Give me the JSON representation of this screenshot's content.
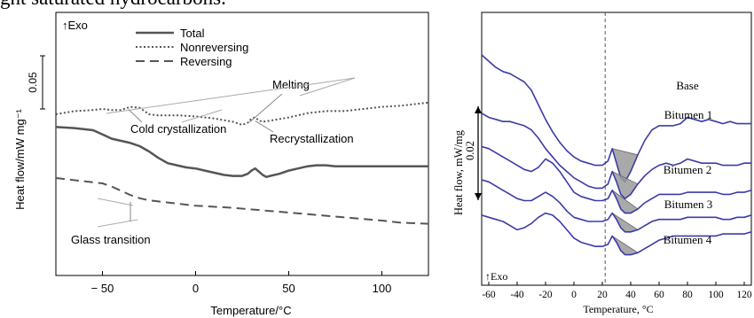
{
  "header_fragment": "ght saturated hydrocarbons.",
  "chart_data": [
    {
      "type": "line",
      "title": "",
      "xlabel": "Temperature/°C",
      "ylabel": "Heat flow/mW mg⁻¹",
      "exo_label": "↑Exo",
      "xlim": [
        -75,
        125
      ],
      "xticks": [
        -50,
        0,
        50,
        100
      ],
      "xtick_labels": [
        "− 50",
        "0",
        "50",
        "100"
      ],
      "scale_bar_label": "0.05",
      "scale_bar_value": 0.05,
      "legend_position": "top-left",
      "series": [
        {
          "name": "Total",
          "style": "solid",
          "color": "#555555",
          "x": [
            -75,
            -65,
            -55,
            -50,
            -45,
            -40,
            -35,
            -30,
            -25,
            -20,
            -15,
            -10,
            -5,
            0,
            5,
            10,
            15,
            20,
            25,
            28,
            30,
            32,
            34,
            36,
            38,
            40,
            45,
            50,
            55,
            60,
            65,
            70,
            75,
            80,
            90,
            100,
            110,
            125
          ],
          "y": [
            0.048,
            0.047,
            0.045,
            0.041,
            0.037,
            0.035,
            0.033,
            0.03,
            0.025,
            0.019,
            0.014,
            0.012,
            0.01,
            0.009,
            0.007,
            0.005,
            0.003,
            0.002,
            0.002,
            0.004,
            0.007,
            0.009,
            0.006,
            0.003,
            0.001,
            0.002,
            0.004,
            0.007,
            0.009,
            0.011,
            0.012,
            0.012,
            0.011,
            0.011,
            0.011,
            0.011,
            0.011,
            0.011
          ]
        },
        {
          "name": "Nonreversing",
          "style": "dotted",
          "color": "#555555",
          "x": [
            -75,
            -65,
            -55,
            -50,
            -45,
            -40,
            -35,
            -30,
            -25,
            -20,
            -10,
            0,
            10,
            20,
            25,
            28,
            30,
            32,
            34,
            36,
            40,
            50,
            60,
            70,
            80,
            90,
            100,
            110,
            120,
            125
          ],
          "y": [
            0.06,
            0.063,
            0.064,
            0.065,
            0.064,
            0.064,
            0.067,
            0.066,
            0.06,
            0.059,
            0.059,
            0.058,
            0.056,
            0.053,
            0.05,
            0.052,
            0.056,
            0.057,
            0.054,
            0.053,
            0.054,
            0.057,
            0.061,
            0.063,
            0.063,
            0.065,
            0.067,
            0.068,
            0.07,
            0.071
          ]
        },
        {
          "name": "Reversing",
          "style": "dashed",
          "color": "#555555",
          "x": [
            -75,
            -60,
            -50,
            -45,
            -40,
            -35,
            -30,
            -25,
            -20,
            -10,
            0,
            20,
            40,
            60,
            80,
            100,
            110,
            125
          ],
          "y": [
            0.0,
            -0.003,
            -0.005,
            -0.008,
            -0.012,
            -0.016,
            -0.019,
            -0.021,
            -0.022,
            -0.024,
            -0.026,
            -0.028,
            -0.031,
            -0.034,
            -0.037,
            -0.04,
            -0.042,
            -0.043
          ]
        }
      ],
      "annotations": [
        {
          "text": "Melting"
        },
        {
          "text": "Cold crystallization"
        },
        {
          "text": "Recrystallization"
        },
        {
          "text": "Glass transition"
        }
      ]
    },
    {
      "type": "line",
      "title": "",
      "xlabel": "Temperature, °C",
      "ylabel": "Heat flow, mW/mg",
      "exo_label": "↑Exo",
      "xlim": [
        -65,
        125
      ],
      "xticks": [
        -60,
        -40,
        -20,
        0,
        20,
        40,
        60,
        80,
        100,
        120
      ],
      "scale_bar_label": "0.02",
      "scale_bar_value": 0.02,
      "reference_line_x": 22,
      "shaded_peak_range": [
        25,
        45
      ],
      "series": [
        {
          "name": "Base",
          "color": "#3b3ba8",
          "x": [
            -65,
            -60,
            -55,
            -50,
            -45,
            -40,
            -35,
            -30,
            -25,
            -20,
            -15,
            -10,
            -5,
            0,
            5,
            10,
            15,
            20,
            24,
            27,
            30,
            33,
            36,
            40,
            45,
            50,
            55,
            60,
            65,
            70,
            75,
            80,
            85,
            90,
            95,
            100,
            105,
            110,
            115,
            120,
            125
          ],
          "y": [
            0.08,
            0.077,
            0.074,
            0.072,
            0.071,
            0.069,
            0.067,
            0.063,
            0.056,
            0.049,
            0.043,
            0.038,
            0.034,
            0.031,
            0.029,
            0.028,
            0.027,
            0.027,
            0.029,
            0.035,
            0.028,
            0.021,
            0.019,
            0.024,
            0.032,
            0.039,
            0.044,
            0.046,
            0.046,
            0.046,
            0.047,
            0.05,
            0.049,
            0.048,
            0.049,
            0.048,
            0.047,
            0.048,
            0.047,
            0.047,
            0.047
          ]
        },
        {
          "name": "Bitumen 1",
          "color": "#3b3ba8",
          "x": [
            -65,
            -60,
            -55,
            -50,
            -45,
            -40,
            -35,
            -30,
            -25,
            -20,
            -15,
            -10,
            -5,
            0,
            5,
            10,
            15,
            20,
            24,
            27,
            30,
            33,
            36,
            40,
            45,
            50,
            55,
            60,
            65,
            70,
            75,
            80,
            85,
            90,
            95,
            100,
            105,
            110,
            115,
            120,
            125
          ],
          "y": [
            0.052,
            0.05,
            0.049,
            0.048,
            0.048,
            0.047,
            0.046,
            0.044,
            0.04,
            0.035,
            0.031,
            0.027,
            0.024,
            0.021,
            0.019,
            0.017,
            0.016,
            0.016,
            0.018,
            0.024,
            0.019,
            0.013,
            0.011,
            0.013,
            0.018,
            0.022,
            0.025,
            0.027,
            0.028,
            0.027,
            0.028,
            0.03,
            0.029,
            0.028,
            0.028,
            0.028,
            0.027,
            0.027,
            0.027,
            0.028,
            0.028
          ]
        },
        {
          "name": "Bitumen 2",
          "color": "#3b3ba8",
          "x": [
            -65,
            -60,
            -55,
            -50,
            -45,
            -40,
            -35,
            -30,
            -25,
            -20,
            -15,
            -10,
            -5,
            0,
            5,
            10,
            15,
            20,
            24,
            27,
            30,
            33,
            36,
            40,
            45,
            50,
            55,
            60,
            65,
            70,
            75,
            80,
            85,
            90,
            95,
            100,
            105,
            110,
            115,
            120,
            125
          ],
          "y": [
            0.036,
            0.035,
            0.033,
            0.031,
            0.029,
            0.027,
            0.025,
            0.024,
            0.026,
            0.03,
            0.028,
            0.024,
            0.019,
            0.014,
            0.012,
            0.011,
            0.01,
            0.01,
            0.011,
            0.015,
            0.011,
            0.006,
            0.004,
            0.004,
            0.006,
            0.009,
            0.011,
            0.013,
            0.013,
            0.013,
            0.013,
            0.014,
            0.014,
            0.014,
            0.014,
            0.014,
            0.013,
            0.013,
            0.014,
            0.014,
            0.015
          ]
        },
        {
          "name": "Bitumen 3",
          "color": "#3b3ba8",
          "x": [
            -65,
            -60,
            -55,
            -50,
            -45,
            -40,
            -35,
            -30,
            -25,
            -20,
            -15,
            -10,
            -5,
            0,
            5,
            10,
            15,
            20,
            24,
            27,
            30,
            33,
            36,
            40,
            45,
            50,
            55,
            60,
            65,
            70,
            75,
            80,
            85,
            90,
            95,
            100,
            105,
            110,
            115,
            120,
            125
          ],
          "y": [
            0.02,
            0.019,
            0.017,
            0.015,
            0.013,
            0.011,
            0.01,
            0.01,
            0.012,
            0.014,
            0.012,
            0.009,
            0.005,
            0.002,
            0.001,
            0.0,
            0.0,
            0.0,
            0.001,
            0.004,
            0.001,
            -0.003,
            -0.005,
            -0.005,
            -0.004,
            -0.002,
            0.0,
            0.001,
            0.001,
            0.001,
            0.001,
            0.002,
            0.002,
            0.002,
            0.002,
            0.002,
            0.001,
            0.001,
            0.002,
            0.002,
            0.003
          ]
        },
        {
          "name": "Bitumen 4",
          "color": "#3b3ba8",
          "x": [
            -65,
            -60,
            -55,
            -50,
            -45,
            -40,
            -35,
            -30,
            -25,
            -20,
            -15,
            -10,
            -5,
            0,
            5,
            10,
            15,
            20,
            24,
            27,
            30,
            33,
            36,
            40,
            45,
            50,
            55,
            60,
            65,
            70,
            75,
            80,
            85,
            90,
            95,
            100,
            105,
            110,
            115,
            120,
            125
          ],
          "y": [
            0.003,
            0.002,
            0.001,
            0.0,
            -0.002,
            -0.004,
            -0.003,
            -0.001,
            0.002,
            0.004,
            0.003,
            0.0,
            -0.004,
            -0.008,
            -0.01,
            -0.011,
            -0.012,
            -0.012,
            -0.011,
            -0.007,
            -0.01,
            -0.014,
            -0.016,
            -0.016,
            -0.015,
            -0.013,
            -0.011,
            -0.009,
            -0.008,
            -0.007,
            -0.007,
            -0.007,
            -0.007,
            -0.007,
            -0.007,
            -0.007,
            -0.006,
            -0.006,
            -0.006,
            -0.006,
            -0.005
          ]
        }
      ]
    }
  ]
}
